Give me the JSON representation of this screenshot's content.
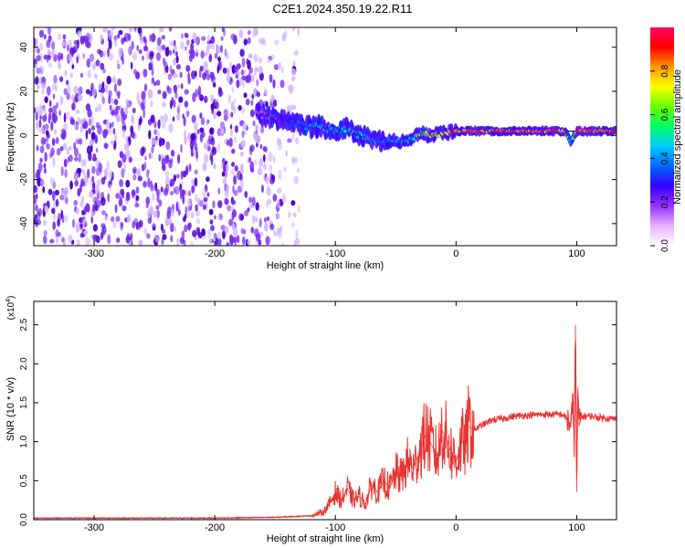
{
  "title": "C2E1.2024.350.19.22.R11",
  "colors": {
    "snr_line": "#e8332f",
    "scatter_low": "#d4b6ff",
    "scatter_mid": "#7a2cf2",
    "scatter_high": "#4b00c8",
    "colorbar": [
      "#ffffff",
      "#e6b3ff",
      "#9933ff",
      "#3300ff",
      "#0066ff",
      "#00ccff",
      "#00ff66",
      "#66ff00",
      "#ffff00",
      "#ff9900",
      "#ff0000",
      "#ff0066"
    ]
  },
  "chart_data": [
    {
      "type": "heatmap",
      "title": "C2E1.2024.350.19.22.R11",
      "xlabel": "Height of straight line (km)",
      "ylabel": "Frequency (Hz)",
      "xlim": [
        -350,
        133
      ],
      "ylim": [
        -50,
        49
      ],
      "xticks": [
        -300,
        -200,
        -100,
        0,
        100
      ],
      "xtick_labels": [
        "-300",
        "-200",
        "-100",
        "0",
        "100"
      ],
      "yticks": [
        -40,
        -20,
        0,
        20,
        40
      ],
      "ytick_labels": [
        "-40",
        "-20",
        "0",
        "20",
        "40"
      ],
      "colorbar": {
        "label": "Normalized spectral amplitude",
        "range": [
          0,
          1
        ],
        "ticks": [
          0.0,
          0.2,
          0.4,
          0.6,
          0.8
        ],
        "tick_labels": [
          "0.0",
          "0.2",
          "0.4",
          "0.6",
          "0.8"
        ]
      },
      "ridge": {
        "x": [
          -165,
          -150,
          -140,
          -125,
          -110,
          -100,
          -90,
          -80,
          -70,
          -60,
          -50,
          -40,
          -30,
          -20,
          -10,
          0,
          20,
          50,
          80,
          90,
          95,
          100,
          133
        ],
        "freq": [
          10,
          8,
          6,
          4,
          4,
          2,
          3,
          0,
          -2,
          -3,
          -2,
          -3,
          1,
          0,
          1,
          2,
          2,
          2,
          2,
          2,
          -3,
          2,
          2
        ],
        "amplitude": [
          0.15,
          0.2,
          0.3,
          0.4,
          0.45,
          0.45,
          0.5,
          0.5,
          0.45,
          0.4,
          0.4,
          0.45,
          0.6,
          0.7,
          0.8,
          0.85,
          0.9,
          0.95,
          0.95,
          0.9,
          0.5,
          0.9,
          0.95
        ]
      },
      "noise_region": {
        "x_range": [
          -350,
          -130
        ],
        "freq_range": [
          -50,
          49
        ],
        "amplitude_range": [
          0.0,
          0.2
        ]
      },
      "reference_line_freq": 2,
      "grid": false
    },
    {
      "type": "line",
      "xlabel": "Height of straight line (km)",
      "ylabel": "SNR (10 * v/v)",
      "scale_label": "(x10",
      "scale_exponent": "4",
      "xlim": [
        -350,
        133
      ],
      "ylim": [
        0,
        28000
      ],
      "xticks": [
        -300,
        -200,
        -100,
        0,
        100
      ],
      "xtick_labels": [
        "-300",
        "-200",
        "-100",
        "0",
        "100"
      ],
      "yticks": [
        0,
        5000,
        10000,
        15000,
        20000,
        25000
      ],
      "ytick_labels": [
        "0.0",
        "0.5",
        "1.0",
        "1.5",
        "2.0",
        "2.5"
      ],
      "series": [
        {
          "x": [
            -350,
            -300,
            -250,
            -200,
            -150,
            -120,
            -110,
            -105,
            -100,
            -95,
            -90,
            -85,
            -80,
            -75,
            -70,
            -65,
            -60,
            -55,
            -50,
            -45,
            -40,
            -35,
            -30,
            -25,
            -20,
            -15,
            -12,
            -8,
            -5,
            0,
            5,
            8,
            10,
            15,
            20,
            30,
            40,
            50,
            60,
            70,
            80,
            88,
            92,
            95,
            97,
            98,
            99,
            100,
            101,
            102,
            104,
            110,
            120,
            133
          ],
          "y": [
            200,
            200,
            200,
            200,
            300,
            500,
            1000,
            2000,
            3500,
            2500,
            4000,
            2500,
            3000,
            2000,
            4500,
            3500,
            5000,
            4000,
            6000,
            5500,
            7500,
            6500,
            9000,
            11000,
            9500,
            8000,
            11500,
            10500,
            9000,
            7500,
            10000,
            9500,
            12000,
            11500,
            12000,
            12800,
            13000,
            13300,
            13400,
            13500,
            13500,
            13500,
            13000,
            12000,
            15000,
            10000,
            25000,
            3500,
            17000,
            12000,
            13200,
            13300,
            13100,
            12900
          ]
        }
      ],
      "grid": false
    }
  ]
}
